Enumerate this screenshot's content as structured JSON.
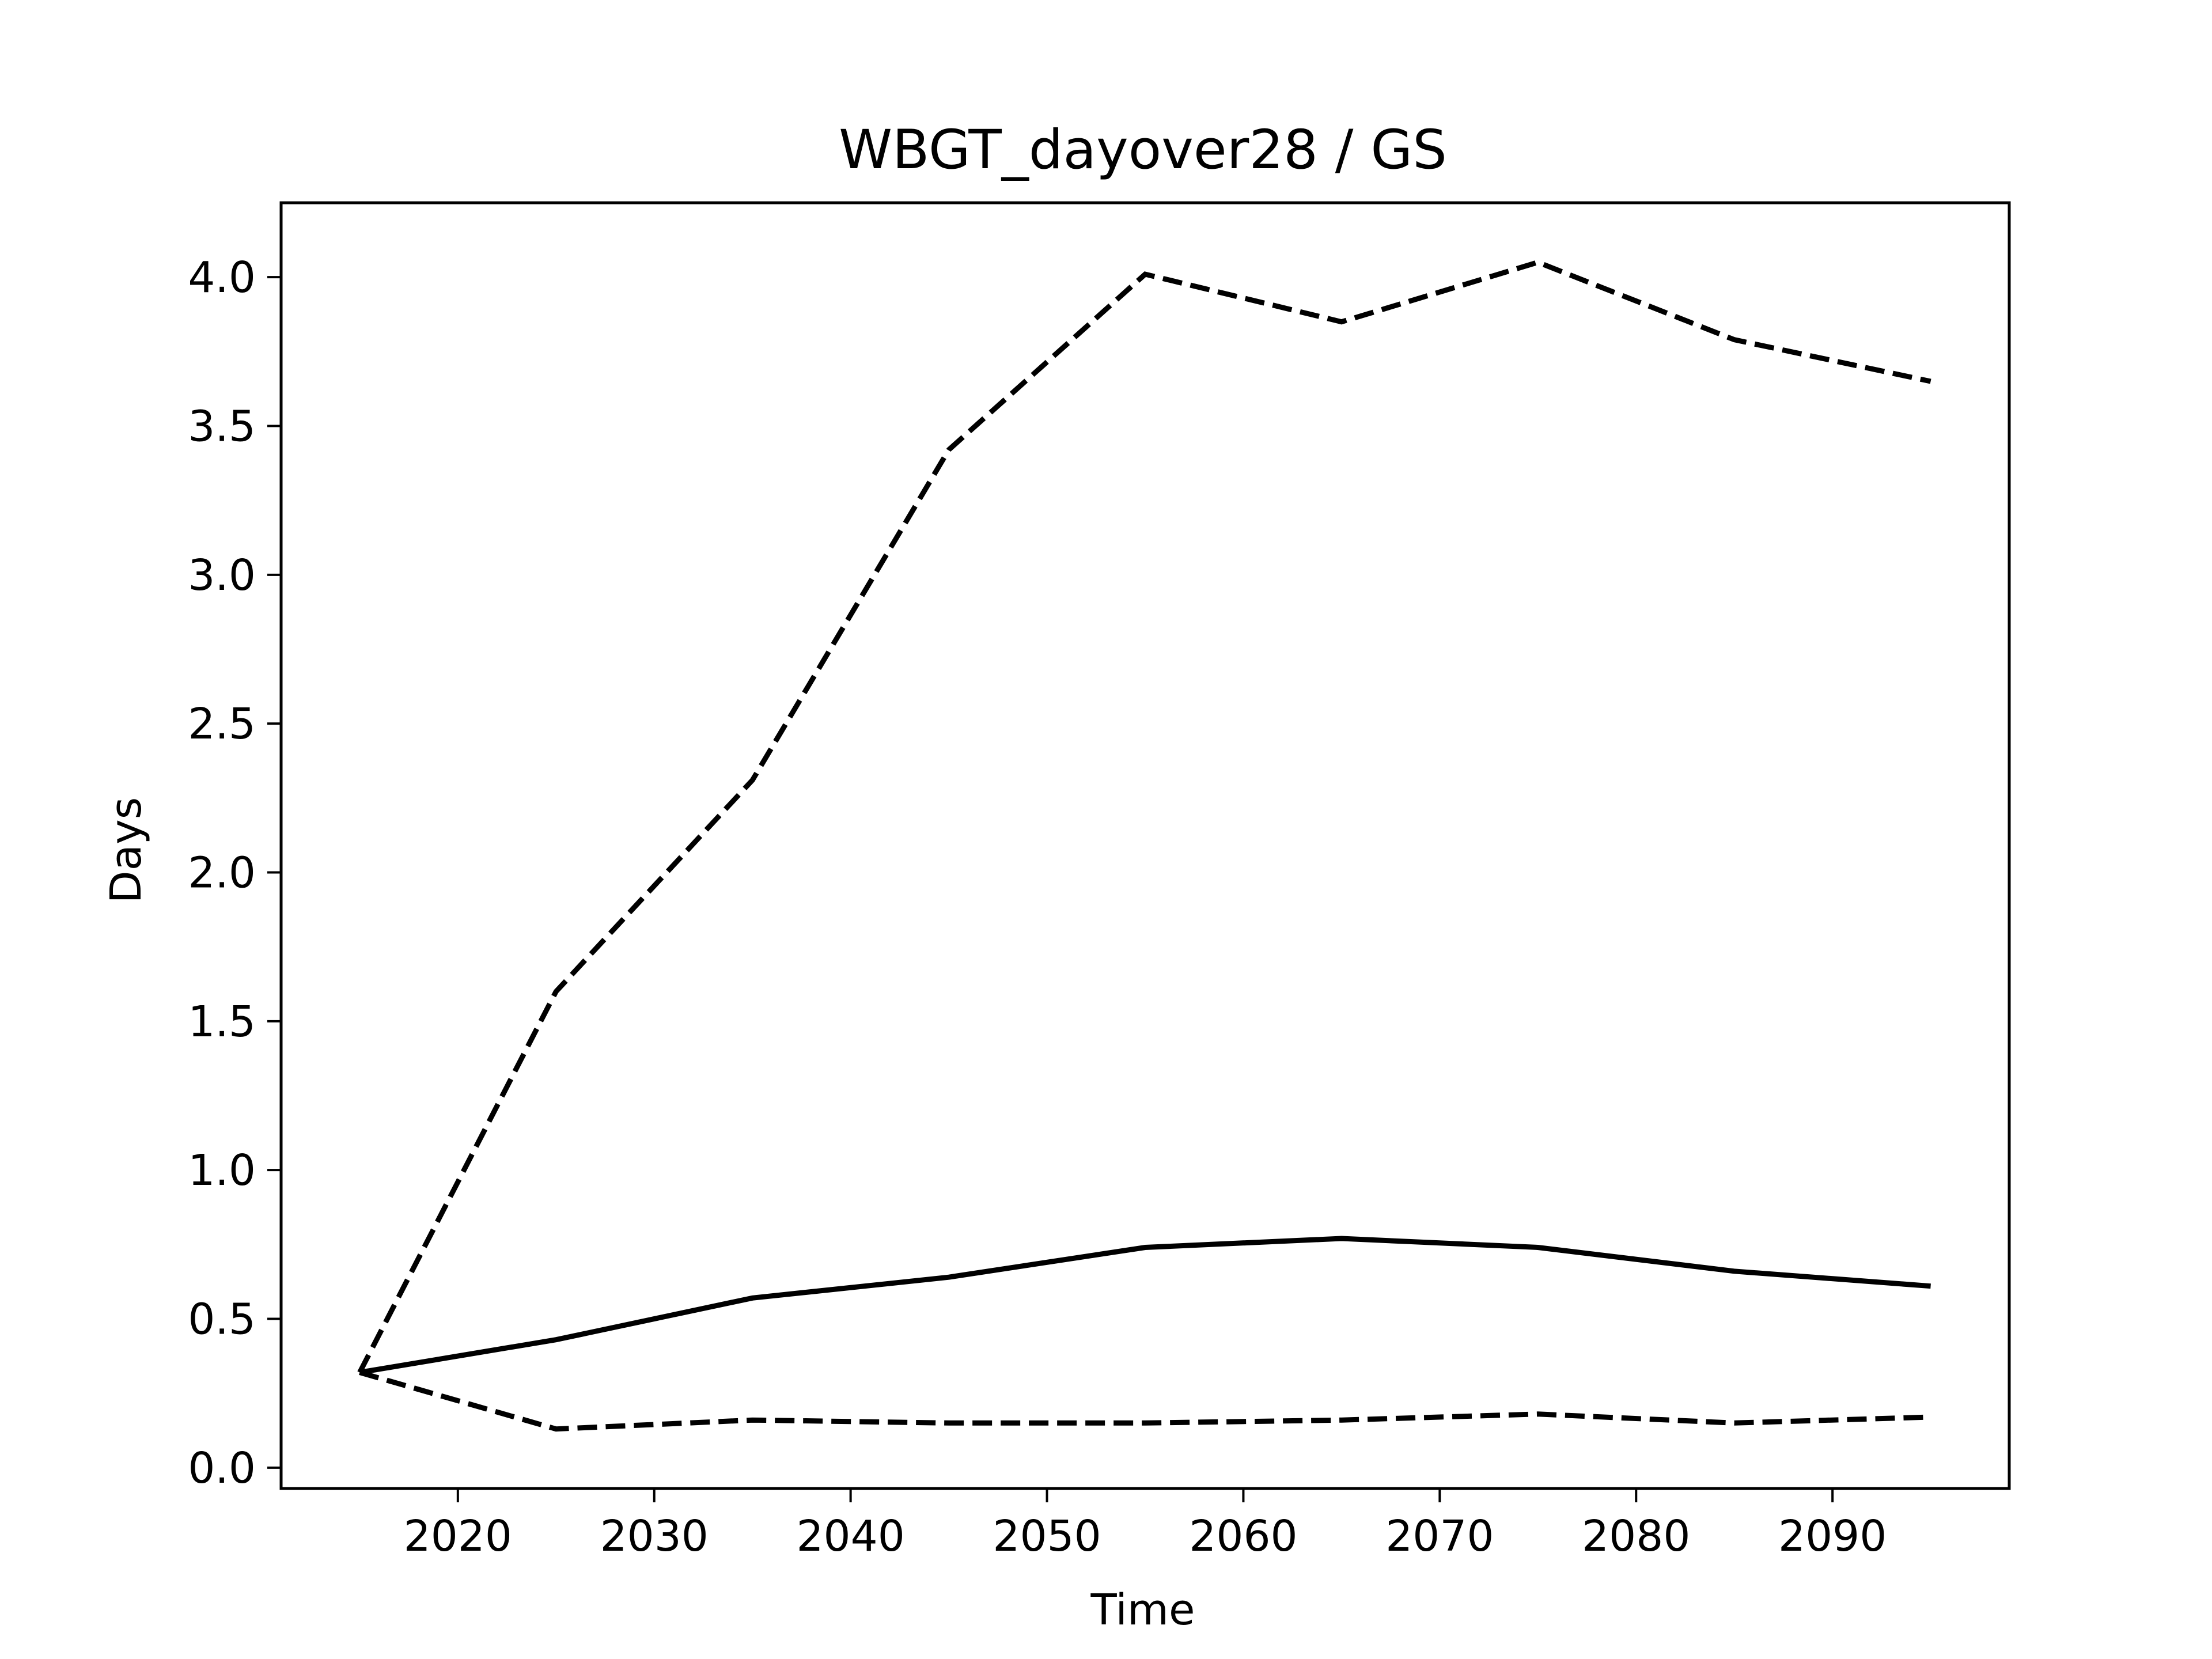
{
  "chart_data": {
    "type": "line",
    "title": "WBGT_dayover28 / GS",
    "xlabel": "Time",
    "ylabel": "Days",
    "xlim": [
      2011,
      2099
    ],
    "ylim": [
      -0.07,
      4.25
    ],
    "xticks": [
      2020,
      2030,
      2040,
      2050,
      2060,
      2070,
      2080,
      2090
    ],
    "yticks": [
      "0.0",
      "0.5",
      "1.0",
      "1.5",
      "2.0",
      "2.5",
      "3.0",
      "3.5",
      "4.0"
    ],
    "grid": false,
    "legend": "none",
    "x": [
      2015,
      2025,
      2035,
      2045,
      2055,
      2065,
      2075,
      2085,
      2095
    ],
    "series": [
      {
        "style": "dashed",
        "color": "#000000",
        "values": [
          0.32,
          1.6,
          2.31,
          3.42,
          4.01,
          3.85,
          4.05,
          3.79,
          3.65
        ]
      },
      {
        "style": "solid",
        "color": "#000000",
        "values": [
          0.32,
          0.43,
          0.57,
          0.64,
          0.74,
          0.77,
          0.74,
          0.66,
          0.61
        ]
      },
      {
        "style": "dashed",
        "color": "#000000",
        "values": [
          0.32,
          0.13,
          0.16,
          0.15,
          0.15,
          0.16,
          0.18,
          0.15,
          0.17
        ]
      }
    ]
  }
}
